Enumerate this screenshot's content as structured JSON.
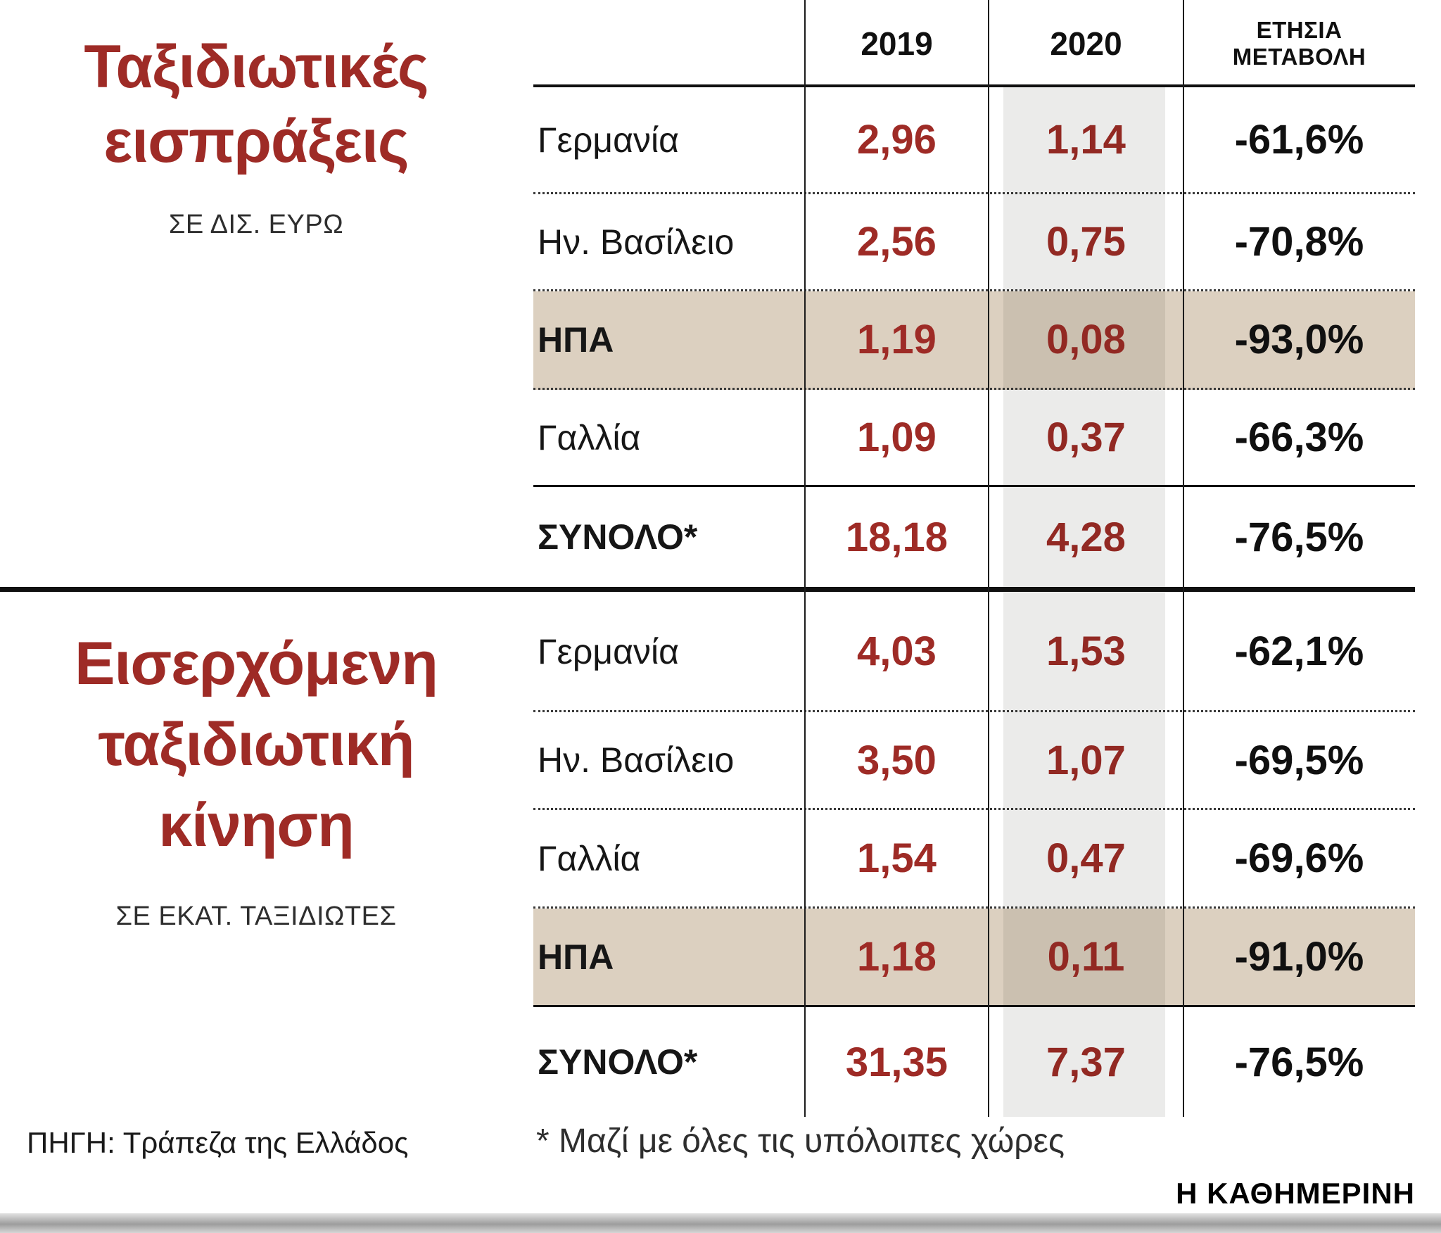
{
  "brand": "Η ΚΑΘΗΜΕΡΙΝΗ",
  "source": "ΠΗΓΗ: Τράπεζα της Ελλάδος",
  "footnote": "* Μαζί με όλες τις υπόλοιπες χώρες",
  "colors": {
    "accent_red": "#9e2b26",
    "highlight_beige": "#dcd0c0",
    "stripe_gray": "#ebebeb",
    "line_black": "#101010"
  },
  "table_header": {
    "col_2019": "2019",
    "col_2020": "2020",
    "col_change_line1": "ΕΤΗΣΙΑ",
    "col_change_line2": "ΜΕΤΑΒΟΛΗ"
  },
  "chart_data": [
    {
      "type": "table",
      "title": "Ταξιδιωτικές εισπράξεις",
      "title_lines": [
        "Ταξιδιωτικές",
        "εισπράξεις"
      ],
      "unit_label": "ΣΕ ΔΙΣ. ΕΥΡΩ",
      "columns": [
        "2019",
        "2020",
        "ΕΤΗΣΙΑ ΜΕΤΑΒΟΛΗ"
      ],
      "rows": [
        {
          "label": "Γερμανία",
          "y2019": "2,96",
          "y2020": "1,14",
          "change": "-61,6%",
          "y2019_num": 2.96,
          "y2020_num": 1.14,
          "change_pct": -61.6,
          "highlight": false,
          "total": false
        },
        {
          "label": "Ην. Βασίλειο",
          "y2019": "2,56",
          "y2020": "0,75",
          "change": "-70,8%",
          "y2019_num": 2.56,
          "y2020_num": 0.75,
          "change_pct": -70.8,
          "highlight": false,
          "total": false
        },
        {
          "label": "ΗΠΑ",
          "y2019": "1,19",
          "y2020": "0,08",
          "change": "-93,0%",
          "y2019_num": 1.19,
          "y2020_num": 0.08,
          "change_pct": -93.0,
          "highlight": true,
          "total": false
        },
        {
          "label": "Γαλλία",
          "y2019": "1,09",
          "y2020": "0,37",
          "change": "-66,3%",
          "y2019_num": 1.09,
          "y2020_num": 0.37,
          "change_pct": -66.3,
          "highlight": false,
          "total": false
        },
        {
          "label": "ΣΥΝΟΛΟ*",
          "y2019": "18,18",
          "y2020": "4,28",
          "change": "-76,5%",
          "y2019_num": 18.18,
          "y2020_num": 4.28,
          "change_pct": -76.5,
          "highlight": false,
          "total": true
        }
      ]
    },
    {
      "type": "table",
      "title": "Εισερχόμενη ταξιδιωτική κίνηση",
      "title_lines": [
        "Εισερχόμενη",
        "ταξιδιωτική",
        "κίνηση"
      ],
      "unit_label": "ΣΕ ΕΚΑΤ. ΤΑΞΙΔΙΩΤΕΣ",
      "columns": [
        "2019",
        "2020",
        "ΕΤΗΣΙΑ ΜΕΤΑΒΟΛΗ"
      ],
      "rows": [
        {
          "label": "Γερμανία",
          "y2019": "4,03",
          "y2020": "1,53",
          "change": "-62,1%",
          "y2019_num": 4.03,
          "y2020_num": 1.53,
          "change_pct": -62.1,
          "highlight": false,
          "total": false
        },
        {
          "label": "Ην. Βασίλειο",
          "y2019": "3,50",
          "y2020": "1,07",
          "change": "-69,5%",
          "y2019_num": 3.5,
          "y2020_num": 1.07,
          "change_pct": -69.5,
          "highlight": false,
          "total": false
        },
        {
          "label": "Γαλλία",
          "y2019": "1,54",
          "y2020": "0,47",
          "change": "-69,6%",
          "y2019_num": 1.54,
          "y2020_num": 0.47,
          "change_pct": -69.6,
          "highlight": false,
          "total": false
        },
        {
          "label": "ΗΠΑ",
          "y2019": "1,18",
          "y2020": "0,11",
          "change": "-91,0%",
          "y2019_num": 1.18,
          "y2020_num": 0.11,
          "change_pct": -91.0,
          "highlight": true,
          "total": false
        },
        {
          "label": "ΣΥΝΟΛΟ*",
          "y2019": "31,35",
          "y2020": "7,37",
          "change": "-76,5%",
          "y2019_num": 31.35,
          "y2020_num": 7.37,
          "change_pct": -76.5,
          "highlight": false,
          "total": true
        }
      ]
    }
  ]
}
